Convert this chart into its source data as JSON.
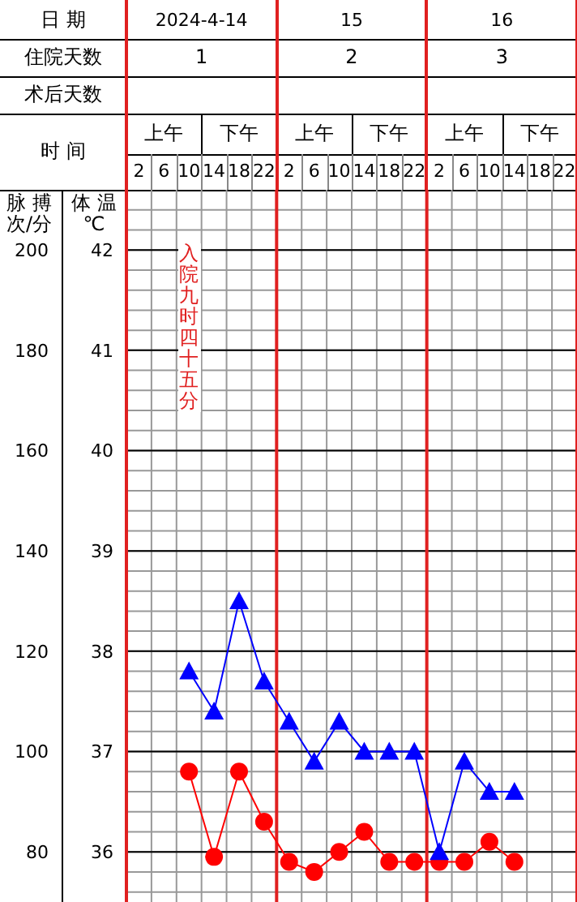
{
  "chart_data": {
    "type": "line",
    "xlabel": "时 间",
    "ylabel": "脉 搏次/分",
    "y2label": "体 温℃",
    "categories": [
      "2",
      "6",
      "10",
      "14",
      "18",
      "22",
      "2",
      "6",
      "10",
      "14",
      "18",
      "22",
      "2",
      "6",
      "10",
      "14",
      "18",
      "22"
    ],
    "series": [
      {
        "color": "#0000ff",
        "axis": "y2",
        "marker": "triangle",
        "values": [
          null,
          null,
          37.8,
          37.4,
          38.5,
          37.7,
          37.3,
          36.9,
          37.3,
          37.0,
          37.0,
          37.0,
          36.0,
          36.9,
          36.6,
          36.6,
          null,
          null
        ]
      },
      {
        "color": "#ff0000",
        "marker": "circle",
        "values": [
          null,
          null,
          96,
          79,
          96,
          86,
          78,
          76,
          80,
          84,
          78,
          78,
          78,
          78,
          82,
          78,
          null,
          null
        ]
      }
    ],
    "ylim": [
      70,
      212
    ],
    "yticks": [
      {
        "value": 72,
        "label": null
      },
      {
        "value": 76,
        "label": null
      },
      80,
      {
        "value": 84,
        "label": null
      },
      {
        "value": 88,
        "label": null
      },
      {
        "value": 92,
        "label": null
      },
      {
        "value": 96,
        "label": null
      },
      100,
      {
        "value": 104,
        "label": null
      },
      {
        "value": 108,
        "label": null
      },
      {
        "value": 112,
        "label": null
      },
      {
        "value": 116,
        "label": null
      },
      120,
      {
        "value": 124,
        "label": null
      },
      {
        "value": 128,
        "label": null
      },
      {
        "value": 132,
        "label": null
      },
      {
        "value": 136,
        "label": null
      },
      140,
      {
        "value": 144,
        "label": null
      },
      {
        "value": 148,
        "label": null
      },
      {
        "value": 152,
        "label": null
      },
      {
        "value": 156,
        "label": null
      },
      160,
      {
        "value": 164,
        "label": null
      },
      {
        "value": 168,
        "label": null
      },
      {
        "value": 172,
        "label": null
      },
      {
        "value": 176,
        "label": null
      },
      180,
      {
        "value": 184,
        "label": null
      },
      {
        "value": 188,
        "label": null
      },
      {
        "value": 192,
        "label": null
      },
      {
        "value": 196,
        "label": null
      },
      200,
      {
        "value": 204,
        "label": null
      },
      {
        "value": 208,
        "label": null
      }
    ],
    "y2lim": [
      35.5,
      42.6
    ],
    "y2ticks": [
      36,
      37,
      38,
      39,
      40,
      41,
      42
    ],
    "grid": true,
    "annotations": [
      "日 期",
      "2024-4-14",
      "15",
      "16",
      "住院天数",
      "1",
      "2",
      "3",
      "术后天数",
      "上午",
      "下午",
      "上午",
      "下午",
      "上午",
      "下午",
      "入院九时四十五分"
    ]
  }
}
